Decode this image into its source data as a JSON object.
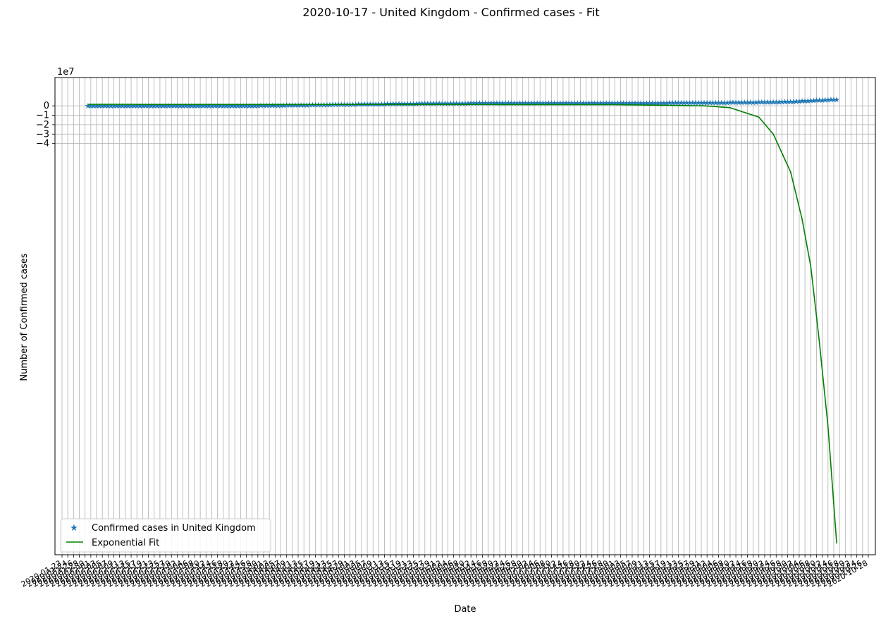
{
  "chart_data": {
    "type": "line",
    "title": "2020-10-17 - United Kingdom - Confirmed cases - Fit",
    "xlabel": "Date",
    "ylabel": "Number of Confirmed cases",
    "y_offset_label": "1e7",
    "y_scale_factor": 10000000,
    "yticks": [
      0,
      -1,
      -2,
      -3,
      -4
    ],
    "ytick_labels": [
      "0",
      "−1",
      "−2",
      "−3",
      "−4"
    ],
    "ylim": [
      -47.6,
      3.0
    ],
    "x_start": "2020-01-22",
    "x_end": "2020-10-28",
    "last_readable_tick": "2020-10-28",
    "grid": true,
    "legend_position": "lower left",
    "series": [
      {
        "name": "Confirmed cases in United Kingdom",
        "marker": "star",
        "color": "#1f77b4",
        "start_date": "2020-01-31",
        "end_date": "2020-10-17",
        "points": [
          [
            "2020-01-31",
            0.0
          ],
          [
            "2020-03-01",
            0.0
          ],
          [
            "2020-04-01",
            0.03
          ],
          [
            "2020-05-01",
            0.17
          ],
          [
            "2020-06-01",
            0.28
          ],
          [
            "2020-07-01",
            0.31
          ],
          [
            "2020-08-01",
            0.31
          ],
          [
            "2020-09-01",
            0.34
          ],
          [
            "2020-09-15",
            0.38
          ],
          [
            "2020-10-01",
            0.46
          ],
          [
            "2020-10-10",
            0.59
          ],
          [
            "2020-10-17",
            0.7
          ]
        ]
      },
      {
        "name": "Exponential Fit",
        "marker": "line",
        "color": "#008000",
        "start_date": "2020-01-31",
        "end_date": "2020-10-17",
        "points": [
          [
            "2020-01-31",
            0.15
          ],
          [
            "2020-06-01",
            0.14
          ],
          [
            "2020-08-01",
            0.12
          ],
          [
            "2020-09-01",
            0.0
          ],
          [
            "2020-09-10",
            -0.2
          ],
          [
            "2020-09-20",
            -1.2
          ],
          [
            "2020-09-25",
            -3.0
          ],
          [
            "2020-10-01",
            -7.0
          ],
          [
            "2020-10-05",
            -12.0
          ],
          [
            "2020-10-08",
            -17.0
          ],
          [
            "2020-10-11",
            -25.0
          ],
          [
            "2020-10-14",
            -34.0
          ],
          [
            "2020-10-17",
            -46.4
          ]
        ]
      }
    ]
  }
}
